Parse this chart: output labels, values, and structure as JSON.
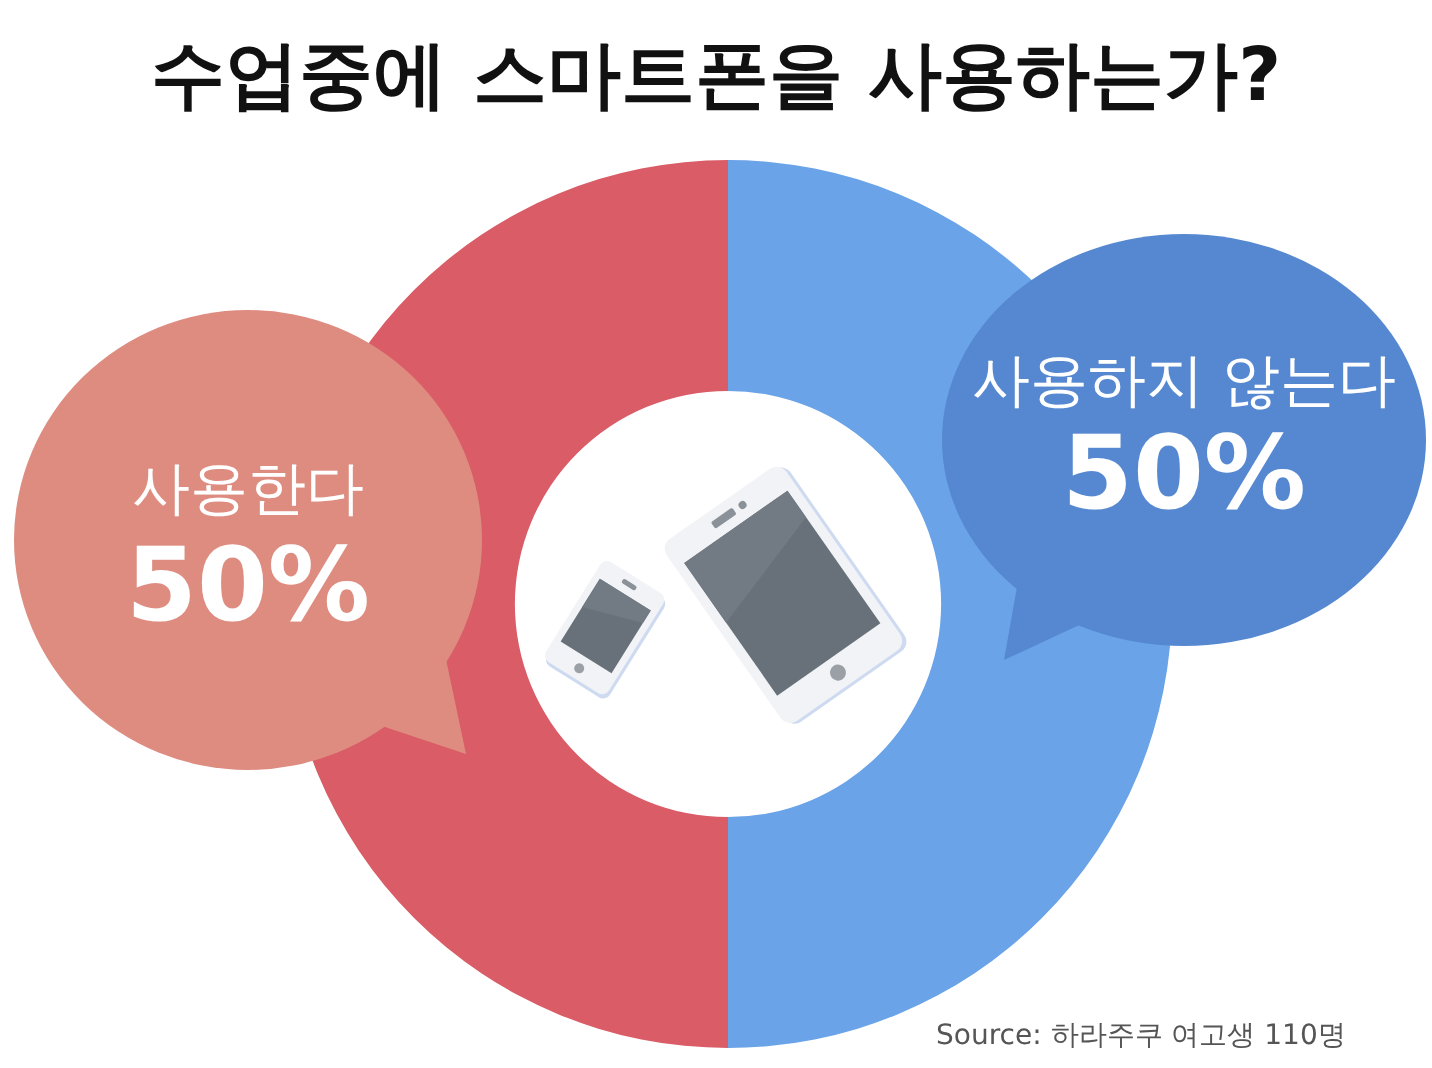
{
  "chart_data": {
    "type": "donut",
    "title": "수업중에 스마트폰을 사용하는가?",
    "categories": [
      "사용한다",
      "사용하지 않는다"
    ],
    "values": [
      50,
      50
    ],
    "colors": [
      "#d95c66",
      "#6aa3e8"
    ],
    "value_labels": [
      "50%",
      "50%"
    ],
    "annotations": [
      "Source: 하라주쿠 여고생 110명"
    ]
  }
}
